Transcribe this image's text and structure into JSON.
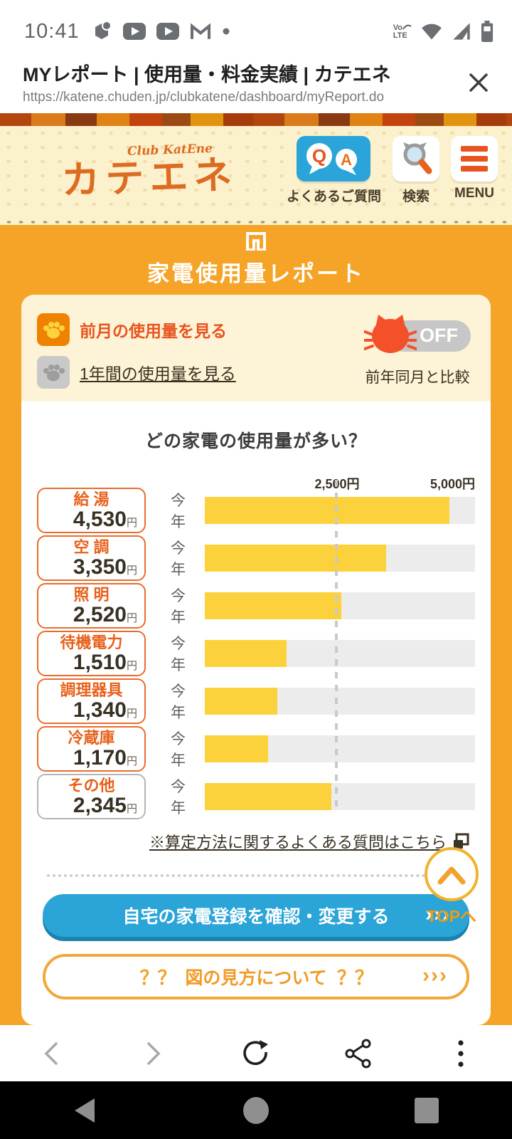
{
  "colors": {
    "accent_orange": "#e8541e",
    "brand_orange": "#f5a427",
    "bar_yellow": "#fcd23c",
    "button_blue": "#2ba4d8",
    "cat_red": "#f4512a",
    "logo_orange": "#dd6b21"
  },
  "status_bar": {
    "time": "10:41"
  },
  "browser": {
    "page_title": "MYレポート | 使用量・料金実績 | カテエネ",
    "url": "https://katene.chuden.jp/clubkatene/dashboard/myReport.do"
  },
  "header": {
    "logo_club": "Club KatEne",
    "logo_text": "カテエネ",
    "qa": {
      "q": "Q",
      "a": "A",
      "label": "よくあるご質問"
    },
    "search_label": "検索",
    "menu_label": "MENU"
  },
  "banner": {
    "title": "家電使用量レポート"
  },
  "controls": {
    "prev_month_label": "前月の使用量を見る",
    "one_year_label": "1年間の使用量を見る",
    "toggle_state": "OFF",
    "compare_label": "前年同月と比較"
  },
  "chart_data": {
    "type": "bar",
    "title": "どの家電の使用量が多い？",
    "series_label": "今年",
    "unit": "円",
    "xlim": [
      0,
      5000
    ],
    "gridline_at": 2500,
    "ticks": [
      {
        "value": 2500,
        "label": "2,500円"
      },
      {
        "value": 5000,
        "label": "5,000円"
      }
    ],
    "categories": [
      "給湯",
      "空調",
      "照明",
      "待機電力",
      "調理器具",
      "冷蔵庫",
      "その他"
    ],
    "values": [
      4530,
      3350,
      2520,
      1510,
      1340,
      1170,
      2345
    ],
    "rows": [
      {
        "label": "給 湯",
        "display": "4,530",
        "unit": "円",
        "series": "今年"
      },
      {
        "label": "空 調",
        "display": "3,350",
        "unit": "円",
        "series": "今年"
      },
      {
        "label": "照 明",
        "display": "2,520",
        "unit": "円",
        "series": "今年"
      },
      {
        "label": "待機電力",
        "display": "1,510",
        "unit": "円",
        "series": "今年"
      },
      {
        "label": "調理器具",
        "display": "1,340",
        "unit": "円",
        "series": "今年"
      },
      {
        "label": "冷蔵庫",
        "display": "1,170",
        "unit": "円",
        "series": "今年"
      },
      {
        "label": "その他",
        "display": "2,345",
        "unit": "円",
        "series": "今年"
      }
    ],
    "footnote": "※算定方法に関するよくある質問はこちら"
  },
  "actions": {
    "register_label": "自宅の家電登録を確認・変更する",
    "chevrons": "›››",
    "howto_label": "図の見方について",
    "howto_marks": "？？",
    "top_label": "TOPへ"
  }
}
